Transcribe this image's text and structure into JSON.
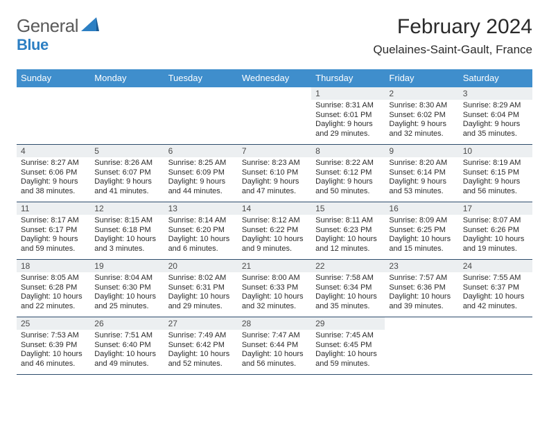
{
  "logo": {
    "textA": "General",
    "textB": "Blue"
  },
  "title": "February 2024",
  "location": "Quelaines-Saint-Gault, France",
  "colors": {
    "header_bg": "#3f8ecc",
    "header_text": "#ffffff",
    "daynum_bg": "#eceff1",
    "border": "#2b4a6a",
    "brand_blue": "#2c7fc3",
    "text": "#2a2a2a"
  },
  "fonts": {
    "title_size": 30,
    "location_size": 17,
    "dayhead_size": 13,
    "daynum_size": 12,
    "body_size": 11
  },
  "dayHeaders": [
    "Sunday",
    "Monday",
    "Tuesday",
    "Wednesday",
    "Thursday",
    "Friday",
    "Saturday"
  ],
  "weeks": [
    [
      {
        "day": "",
        "sunrise": "",
        "sunset": "",
        "daylight": ""
      },
      {
        "day": "",
        "sunrise": "",
        "sunset": "",
        "daylight": ""
      },
      {
        "day": "",
        "sunrise": "",
        "sunset": "",
        "daylight": ""
      },
      {
        "day": "",
        "sunrise": "",
        "sunset": "",
        "daylight": ""
      },
      {
        "day": "1",
        "sunrise": "8:31 AM",
        "sunset": "6:01 PM",
        "daylight": "9 hours and 29 minutes."
      },
      {
        "day": "2",
        "sunrise": "8:30 AM",
        "sunset": "6:02 PM",
        "daylight": "9 hours and 32 minutes."
      },
      {
        "day": "3",
        "sunrise": "8:29 AM",
        "sunset": "6:04 PM",
        "daylight": "9 hours and 35 minutes."
      }
    ],
    [
      {
        "day": "4",
        "sunrise": "8:27 AM",
        "sunset": "6:06 PM",
        "daylight": "9 hours and 38 minutes."
      },
      {
        "day": "5",
        "sunrise": "8:26 AM",
        "sunset": "6:07 PM",
        "daylight": "9 hours and 41 minutes."
      },
      {
        "day": "6",
        "sunrise": "8:25 AM",
        "sunset": "6:09 PM",
        "daylight": "9 hours and 44 minutes."
      },
      {
        "day": "7",
        "sunrise": "8:23 AM",
        "sunset": "6:10 PM",
        "daylight": "9 hours and 47 minutes."
      },
      {
        "day": "8",
        "sunrise": "8:22 AM",
        "sunset": "6:12 PM",
        "daylight": "9 hours and 50 minutes."
      },
      {
        "day": "9",
        "sunrise": "8:20 AM",
        "sunset": "6:14 PM",
        "daylight": "9 hours and 53 minutes."
      },
      {
        "day": "10",
        "sunrise": "8:19 AM",
        "sunset": "6:15 PM",
        "daylight": "9 hours and 56 minutes."
      }
    ],
    [
      {
        "day": "11",
        "sunrise": "8:17 AM",
        "sunset": "6:17 PM",
        "daylight": "9 hours and 59 minutes."
      },
      {
        "day": "12",
        "sunrise": "8:15 AM",
        "sunset": "6:18 PM",
        "daylight": "10 hours and 3 minutes."
      },
      {
        "day": "13",
        "sunrise": "8:14 AM",
        "sunset": "6:20 PM",
        "daylight": "10 hours and 6 minutes."
      },
      {
        "day": "14",
        "sunrise": "8:12 AM",
        "sunset": "6:22 PM",
        "daylight": "10 hours and 9 minutes."
      },
      {
        "day": "15",
        "sunrise": "8:11 AM",
        "sunset": "6:23 PM",
        "daylight": "10 hours and 12 minutes."
      },
      {
        "day": "16",
        "sunrise": "8:09 AM",
        "sunset": "6:25 PM",
        "daylight": "10 hours and 15 minutes."
      },
      {
        "day": "17",
        "sunrise": "8:07 AM",
        "sunset": "6:26 PM",
        "daylight": "10 hours and 19 minutes."
      }
    ],
    [
      {
        "day": "18",
        "sunrise": "8:05 AM",
        "sunset": "6:28 PM",
        "daylight": "10 hours and 22 minutes."
      },
      {
        "day": "19",
        "sunrise": "8:04 AM",
        "sunset": "6:30 PM",
        "daylight": "10 hours and 25 minutes."
      },
      {
        "day": "20",
        "sunrise": "8:02 AM",
        "sunset": "6:31 PM",
        "daylight": "10 hours and 29 minutes."
      },
      {
        "day": "21",
        "sunrise": "8:00 AM",
        "sunset": "6:33 PM",
        "daylight": "10 hours and 32 minutes."
      },
      {
        "day": "22",
        "sunrise": "7:58 AM",
        "sunset": "6:34 PM",
        "daylight": "10 hours and 35 minutes."
      },
      {
        "day": "23",
        "sunrise": "7:57 AM",
        "sunset": "6:36 PM",
        "daylight": "10 hours and 39 minutes."
      },
      {
        "day": "24",
        "sunrise": "7:55 AM",
        "sunset": "6:37 PM",
        "daylight": "10 hours and 42 minutes."
      }
    ],
    [
      {
        "day": "25",
        "sunrise": "7:53 AM",
        "sunset": "6:39 PM",
        "daylight": "10 hours and 46 minutes."
      },
      {
        "day": "26",
        "sunrise": "7:51 AM",
        "sunset": "6:40 PM",
        "daylight": "10 hours and 49 minutes."
      },
      {
        "day": "27",
        "sunrise": "7:49 AM",
        "sunset": "6:42 PM",
        "daylight": "10 hours and 52 minutes."
      },
      {
        "day": "28",
        "sunrise": "7:47 AM",
        "sunset": "6:44 PM",
        "daylight": "10 hours and 56 minutes."
      },
      {
        "day": "29",
        "sunrise": "7:45 AM",
        "sunset": "6:45 PM",
        "daylight": "10 hours and 59 minutes."
      },
      {
        "day": "",
        "sunrise": "",
        "sunset": "",
        "daylight": ""
      },
      {
        "day": "",
        "sunrise": "",
        "sunset": "",
        "daylight": ""
      }
    ]
  ],
  "labels": {
    "sunrise": "Sunrise:",
    "sunset": "Sunset:",
    "daylight": "Daylight:"
  }
}
